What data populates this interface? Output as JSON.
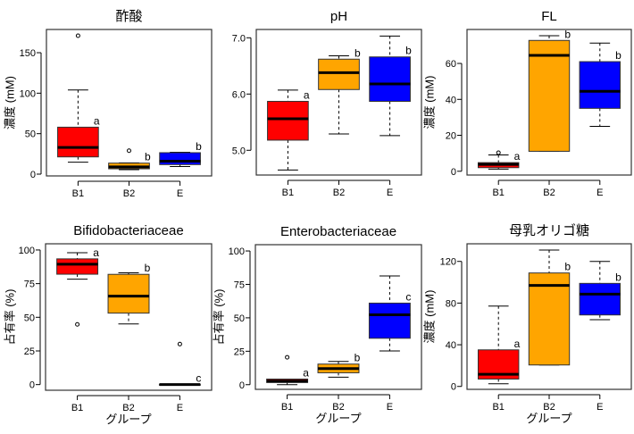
{
  "chart_data": [
    {
      "type": "box",
      "title": "酢酸",
      "ylabel": "濃度 (mM)",
      "xlabel": "",
      "ylim": [
        -2.2,
        178.7
      ],
      "yticks": [
        "0",
        "50",
        "100",
        "150"
      ],
      "categories": [
        "B1",
        "B2",
        "E"
      ],
      "groups": [
        {
          "name": "B1",
          "color": "#ff0000",
          "min": 14.7,
          "q1": 21.3,
          "median": 33,
          "q3": 58,
          "max": 104,
          "outliers": [
            171
          ],
          "letter": "a"
        },
        {
          "name": "B2",
          "color": "#ffa500",
          "min": 5.5,
          "q1": 6.6,
          "median": 9,
          "q3": 13.6,
          "max": 14,
          "outliers": [
            29
          ],
          "letter": "b"
        },
        {
          "name": "E",
          "color": "#0000ff",
          "min": 9.4,
          "q1": 11.8,
          "median": 16,
          "q3": 26.5,
          "max": 27,
          "outliers": [],
          "letter": "b"
        }
      ]
    },
    {
      "type": "box",
      "title": "pH",
      "ylabel": "",
      "xlabel": "",
      "ylim": [
        4.56,
        7.148
      ],
      "yticks": [
        "5.0",
        "6.0",
        "7.0"
      ],
      "categories": [
        "B1",
        "B2",
        "E"
      ],
      "groups": [
        {
          "name": "B1",
          "color": "#ff0000",
          "min": 4.65,
          "q1": 5.18,
          "median": 5.56,
          "q3": 5.87,
          "max": 6.07,
          "outliers": [],
          "letter": "a"
        },
        {
          "name": "B2",
          "color": "#ffa500",
          "min": 5.29,
          "q1": 6.08,
          "median": 6.38,
          "q3": 6.62,
          "max": 6.68,
          "outliers": [],
          "letter": "b"
        },
        {
          "name": "E",
          "color": "#0000ff",
          "min": 5.26,
          "q1": 5.87,
          "median": 6.18,
          "q3": 6.66,
          "max": 7.03,
          "outliers": [],
          "letter": "b"
        }
      ]
    },
    {
      "type": "box",
      "title": "FL",
      "ylabel": "濃度 (mM)",
      "xlabel": "",
      "ylim": [
        -2.1,
        78.9
      ],
      "yticks": [
        "0",
        "20",
        "40",
        "60"
      ],
      "categories": [
        "B1",
        "B2",
        "E"
      ],
      "groups": [
        {
          "name": "B1",
          "color": "#ff0000",
          "min": 1.2,
          "q1": 2,
          "median": 3.8,
          "q3": 4.8,
          "max": 9.1,
          "outliers": [
            10.3
          ],
          "letter": "a"
        },
        {
          "name": "B2",
          "color": "#ffa500",
          "min": 11.1,
          "q1": 11.1,
          "median": 64.5,
          "q3": 72.8,
          "max": 75.4,
          "outliers": [],
          "letter": "b"
        },
        {
          "name": "E",
          "color": "#0000ff",
          "min": 25,
          "q1": 35,
          "median": 44.5,
          "q3": 61,
          "max": 71.3,
          "outliers": [],
          "letter": "b"
        }
      ]
    },
    {
      "type": "box",
      "title": "Bifidobacteriaceae",
      "ylabel": "占有率 (%)",
      "xlabel": "グループ",
      "ylim": [
        -4.2,
        104.6
      ],
      "yticks": [
        "0",
        "25",
        "50",
        "75",
        "100"
      ],
      "categories": [
        "B1",
        "B2",
        "E"
      ],
      "groups": [
        {
          "name": "B1",
          "color": "#ff0000",
          "min": 78.3,
          "q1": 82,
          "median": 89.4,
          "q3": 93.4,
          "max": 98,
          "outliers": [
            44.7
          ],
          "letter": "a"
        },
        {
          "name": "B2",
          "color": "#ffa500",
          "min": 45.1,
          "q1": 53.1,
          "median": 65.7,
          "q3": 81.9,
          "max": 83,
          "outliers": [],
          "letter": "b"
        },
        {
          "name": "E",
          "color": "#0000ff",
          "min": 0,
          "q1": 0,
          "median": 0,
          "q3": 0,
          "max": 0,
          "outliers": [
            30.1
          ],
          "letter": "c"
        }
      ]
    },
    {
      "type": "box",
      "title": "Enterobacteriaceae",
      "ylabel": "占有率 (%)",
      "xlabel": "グループ",
      "ylim": [
        -3.5,
        104.7
      ],
      "yticks": [
        "0",
        "25",
        "50",
        "75",
        "100"
      ],
      "categories": [
        "B1",
        "B2",
        "E"
      ],
      "groups": [
        {
          "name": "B1",
          "color": "#ff0000",
          "min": 0,
          "q1": 1.6,
          "median": 2.7,
          "q3": 4.2,
          "max": 4.2,
          "outliers": [
            20.5
          ],
          "letter": "a"
        },
        {
          "name": "B2",
          "color": "#ffa500",
          "min": 5.6,
          "q1": 8.9,
          "median": 12,
          "q3": 15.4,
          "max": 17.4,
          "outliers": [],
          "letter": "b"
        },
        {
          "name": "E",
          "color": "#0000ff",
          "min": 25.2,
          "q1": 34.7,
          "median": 52.3,
          "q3": 61,
          "max": 81.3,
          "outliers": [],
          "letter": "c"
        }
      ]
    },
    {
      "type": "box",
      "title": "母乳オリゴ糖",
      "ylabel": "濃度 (mM)",
      "xlabel": "グループ",
      "ylim": [
        -2.8,
        136.9
      ],
      "yticks": [
        "0",
        "40",
        "80",
        "120"
      ],
      "categories": [
        "B1",
        "B2",
        "E"
      ],
      "groups": [
        {
          "name": "B1",
          "color": "#ff0000",
          "min": 2.6,
          "q1": 7.1,
          "median": 11.7,
          "q3": 35.1,
          "max": 77.1,
          "outliers": [],
          "letter": "a"
        },
        {
          "name": "B2",
          "color": "#ffa500",
          "min": 20.6,
          "q1": 20.6,
          "median": 96.9,
          "q3": 108.9,
          "max": 130.9,
          "outliers": [],
          "letter": "b"
        },
        {
          "name": "E",
          "color": "#0000ff",
          "min": 64,
          "q1": 68.6,
          "median": 88.6,
          "q3": 98.9,
          "max": 120,
          "outliers": [],
          "letter": "b"
        }
      ]
    }
  ]
}
